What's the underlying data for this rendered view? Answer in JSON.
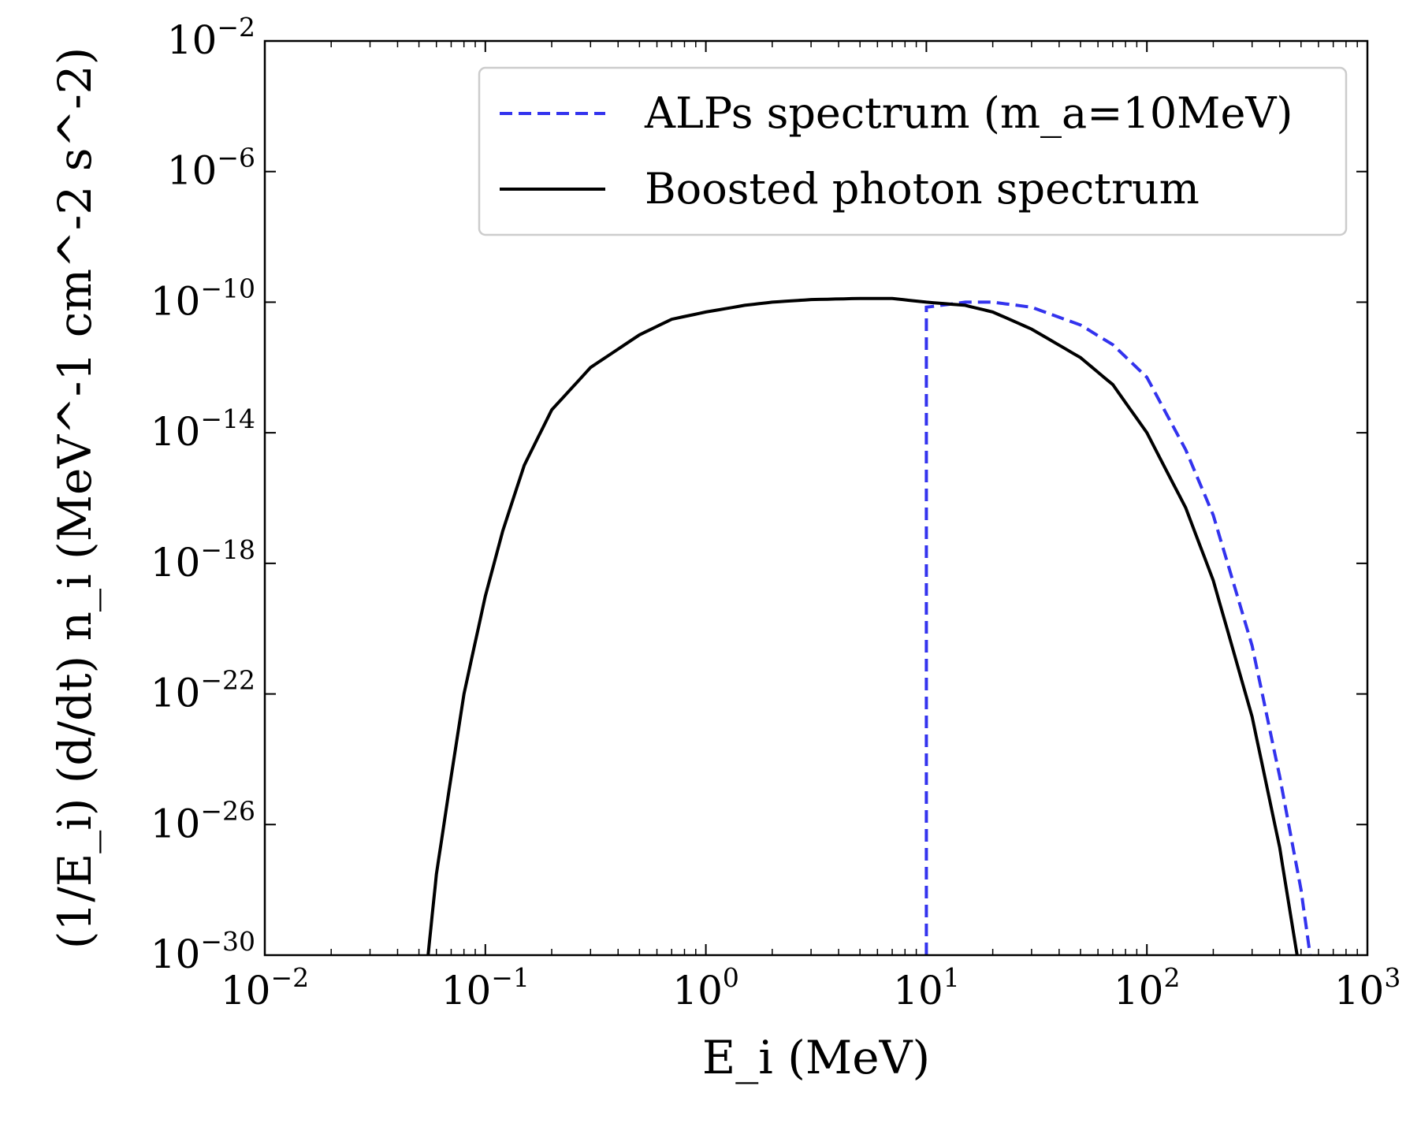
{
  "chart_data": {
    "type": "line",
    "xlabel": "E_i (MeV)",
    "ylabel": "(1/E_i) (d/dt) n_i  (MeV^-1 cm^-2 s^-2)",
    "x_scale": "log",
    "y_scale": "log",
    "xlim": [
      0.01,
      1000
    ],
    "ylim": [
      1e-30,
      0.01
    ],
    "x_ticks": [
      {
        "base": "10",
        "exp": "−2",
        "value": 0.01
      },
      {
        "base": "10",
        "exp": "−1",
        "value": 0.1
      },
      {
        "base": "10",
        "exp": "0",
        "value": 1
      },
      {
        "base": "10",
        "exp": "1",
        "value": 10
      },
      {
        "base": "10",
        "exp": "2",
        "value": 100
      },
      {
        "base": "10",
        "exp": "3",
        "value": 1000
      }
    ],
    "y_ticks": [
      {
        "base": "10",
        "exp": "−2",
        "value": 0.01
      },
      {
        "base": "10",
        "exp": "−6",
        "value": 1e-06
      },
      {
        "base": "10",
        "exp": "−10",
        "value": 1e-10
      },
      {
        "base": "10",
        "exp": "−14",
        "value": 1e-14
      },
      {
        "base": "10",
        "exp": "−18",
        "value": 1e-18
      },
      {
        "base": "10",
        "exp": "−22",
        "value": 1e-22
      },
      {
        "base": "10",
        "exp": "−26",
        "value": 1e-26
      },
      {
        "base": "10",
        "exp": "−30",
        "value": 1e-30
      }
    ],
    "legend_position": "upper right",
    "series": [
      {
        "name": "ALPs spectrum (m_a=10MeV)",
        "color": "#3333ee",
        "style": "dashed",
        "x": [
          10.0,
          10.0,
          15,
          20,
          30,
          50,
          70,
          100,
          150,
          200,
          300,
          400,
          500,
          550
        ],
        "y": [
          1e-30,
          7e-11,
          1e-10,
          1e-10,
          7e-11,
          2e-11,
          5e-12,
          5e-13,
          3e-15,
          3e-17,
          3e-21,
          3e-25,
          1e-28,
          1e-30
        ]
      },
      {
        "name": "Boosted photon spectrum",
        "color": "#000000",
        "style": "solid",
        "x": [
          0.055,
          0.06,
          0.07,
          0.08,
          0.1,
          0.12,
          0.15,
          0.2,
          0.3,
          0.5,
          0.7,
          1.0,
          1.5,
          2,
          3,
          5,
          7,
          10,
          15,
          20,
          30,
          50,
          70,
          100,
          150,
          200,
          300,
          400,
          480
        ],
        "y": [
          1e-30,
          3e-28,
          3e-25,
          1e-22,
          1e-19,
          1e-17,
          1e-15,
          5e-14,
          1e-12,
          1e-11,
          3e-11,
          5e-11,
          8e-11,
          1e-10,
          1.2e-10,
          1.3e-10,
          1.3e-10,
          1e-10,
          8e-11,
          5e-11,
          1.5e-11,
          2e-12,
          3e-13,
          1e-14,
          5e-17,
          3e-19,
          2e-23,
          2e-27,
          1e-30
        ]
      }
    ]
  }
}
